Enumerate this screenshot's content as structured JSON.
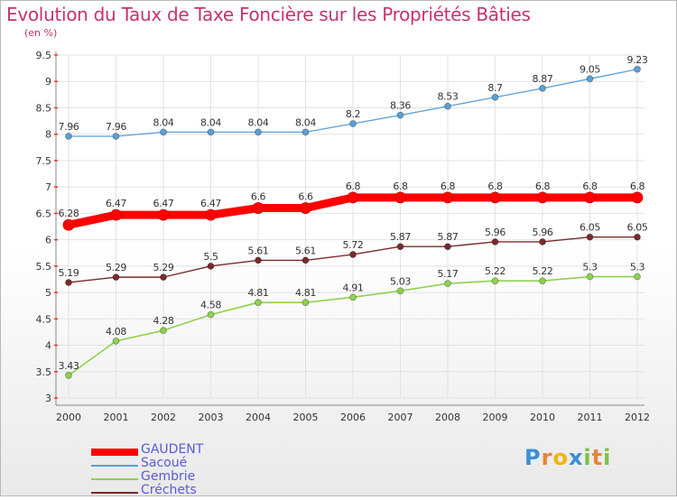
{
  "header": {
    "title": "Evolution du Taux de Taxe Foncière sur les Propriétés Bâties",
    "subtitle": "(en %)"
  },
  "brand": {
    "letters": [
      "P",
      "r",
      "o",
      "x",
      "i",
      "t",
      "i"
    ],
    "colors": [
      "#3a8fd6",
      "#e8833a",
      "#f0b400",
      "#3a8fd6",
      "#7cc242",
      "#e8833a",
      "#7cc242"
    ]
  },
  "chart_data": {
    "type": "line",
    "x": [
      2000,
      2001,
      2002,
      2003,
      2004,
      2005,
      2006,
      2007,
      2008,
      2009,
      2010,
      2011,
      2012
    ],
    "ylim": [
      3,
      9.5
    ],
    "yticks": [
      3,
      3.5,
      4,
      4.5,
      5,
      5.5,
      6,
      6.5,
      7,
      7.5,
      8,
      8.5,
      9,
      9.5
    ],
    "grid": true,
    "legend_position": "bottom-left",
    "series": [
      {
        "name": "GAUDENT",
        "color": "#ff0000",
        "values": [
          6.28,
          6.47,
          6.47,
          6.47,
          6.6,
          6.6,
          6.8,
          6.8,
          6.8,
          6.8,
          6.8,
          6.8,
          6.8
        ],
        "labels": [
          "6.28",
          "6.47",
          "6.47",
          "6.47",
          "6.6",
          "6.6",
          "6.8",
          "6.8",
          "6.8",
          "6.8",
          "6.8",
          "6.8",
          "6.8"
        ]
      },
      {
        "name": "Sacoué",
        "color": "#5b9fd4",
        "values": [
          7.96,
          7.96,
          8.04,
          8.04,
          8.04,
          8.04,
          8.2,
          8.36,
          8.53,
          8.7,
          8.87,
          9.05,
          9.23
        ],
        "labels": [
          "7.96",
          "7.96",
          "8.04",
          "8.04",
          "8.04",
          "8.04",
          "8.2",
          "8.36",
          "8.53",
          "8.7",
          "8.87",
          "9.05",
          "9.23"
        ]
      },
      {
        "name": "Gembrie",
        "color": "#8fd14f",
        "values": [
          3.43,
          4.08,
          4.28,
          4.58,
          4.81,
          4.81,
          4.91,
          5.03,
          5.17,
          5.22,
          5.22,
          5.3,
          5.3
        ],
        "labels": [
          "3.43",
          "4.08",
          "4.28",
          "4.58",
          "4.81",
          "4.81",
          "4.91",
          "5.03",
          "5.17",
          "5.22",
          "5.22",
          "5.3",
          "5.3"
        ]
      },
      {
        "name": "Créchets",
        "color": "#7a2a2a",
        "values": [
          5.19,
          5.29,
          5.29,
          5.5,
          5.61,
          5.61,
          5.72,
          5.87,
          5.87,
          5.96,
          5.96,
          6.05,
          6.05
        ],
        "labels": [
          "5.19",
          "5.29",
          "5.29",
          "5.5",
          "5.61",
          "5.61",
          "5.72",
          "5.87",
          "5.87",
          "5.96",
          "5.96",
          "6.05",
          "6.05"
        ]
      }
    ]
  }
}
